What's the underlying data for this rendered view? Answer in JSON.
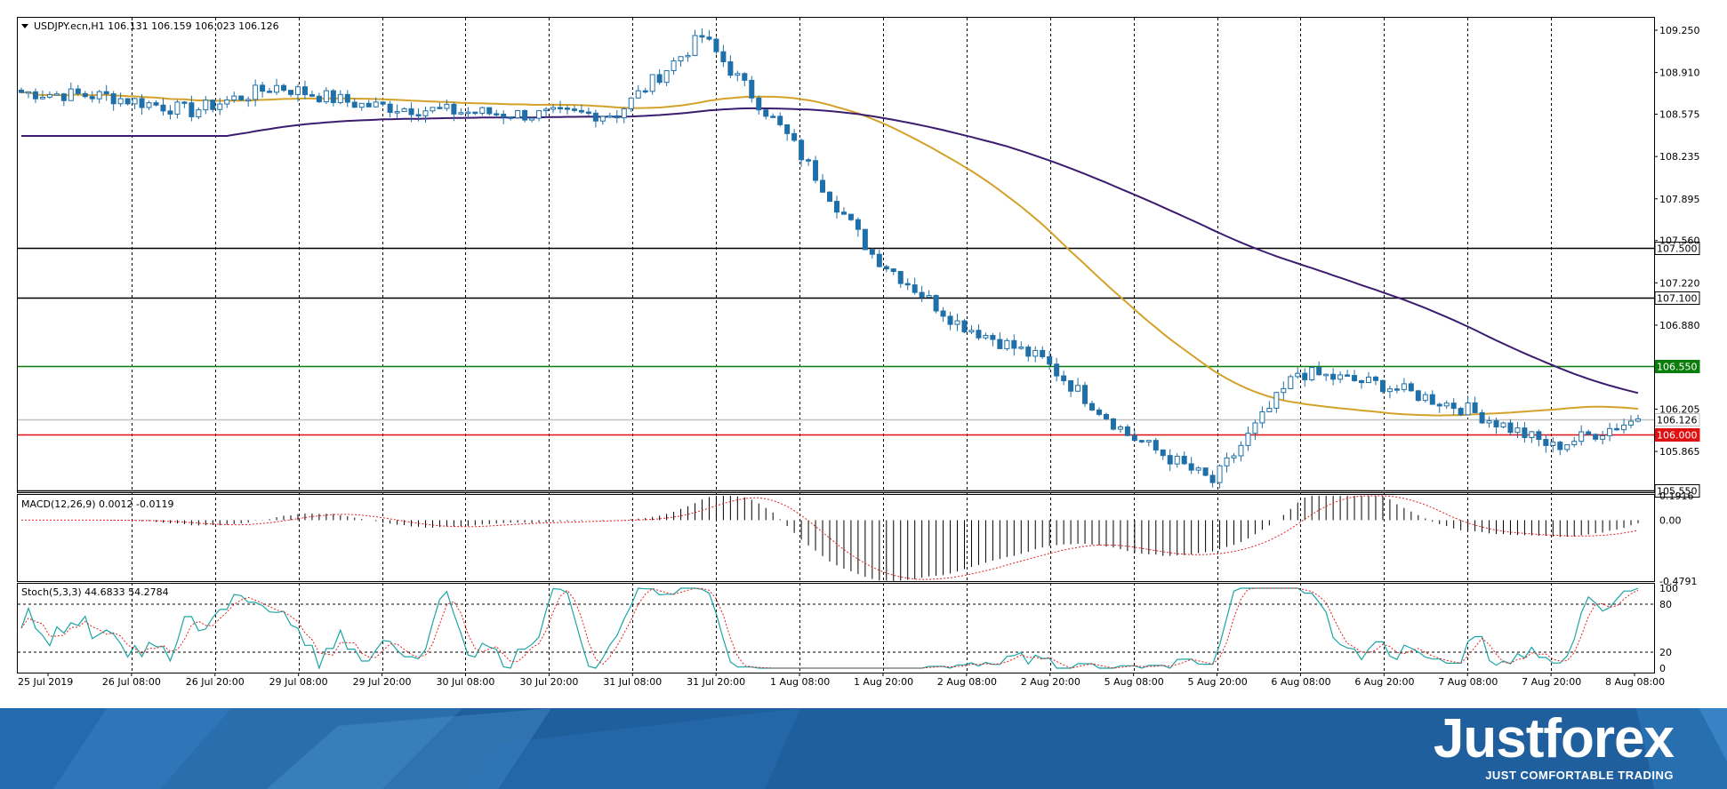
{
  "header": {
    "symbol_info": "USDJPY.ecn,H1  106.131 106.159 106.023 106.126"
  },
  "indicators": {
    "macd_label": "MACD(12,26,9) 0.0012 -0.0119",
    "stoch_label": "Stoch(5,3,3) 44.6833 54.2784"
  },
  "price_axis": {
    "ticks": [
      "109.250",
      "108.910",
      "108.575",
      "108.235",
      "107.895",
      "107.560",
      "107.220",
      "106.880",
      "106.205",
      "105.865"
    ]
  },
  "macd_axis": {
    "ticks": [
      "0.1916",
      "0.00",
      "-0.4791"
    ]
  },
  "stoch_axis": {
    "ticks": [
      "100",
      "80",
      "20",
      "0"
    ]
  },
  "time_axis": {
    "labels": [
      "25 Jul 2019",
      "26 Jul 08:00",
      "26 Jul 20:00",
      "29 Jul 08:00",
      "29 Jul 20:00",
      "30 Jul 08:00",
      "30 Jul 20:00",
      "31 Jul 08:00",
      "31 Jul 20:00",
      "1 Aug 08:00",
      "1 Aug 20:00",
      "2 Aug 08:00",
      "2 Aug 20:00",
      "5 Aug 08:00",
      "5 Aug 20:00",
      "6 Aug 08:00",
      "6 Aug 20:00",
      "7 Aug 08:00",
      "7 Aug 20:00",
      "8 Aug 08:00"
    ]
  },
  "levels": [
    {
      "price": "107.500",
      "color": "#000000",
      "text_color": "#000000",
      "bg": "#ffffff"
    },
    {
      "price": "107.100",
      "color": "#000000",
      "text_color": "#000000",
      "bg": "#ffffff"
    },
    {
      "price": "106.550",
      "color": "#0a7d0a",
      "text_color": "#ffffff",
      "bg": "#0a7d0a"
    },
    {
      "price": "106.126",
      "color": "#c0c0c0",
      "text_color": "#000000",
      "bg": "#ffffff"
    },
    {
      "price": "106.000",
      "color": "#e01010",
      "text_color": "#ffffff",
      "bg": "#e01010"
    },
    {
      "price": "105.550",
      "color": "#000000",
      "text_color": "#000000",
      "bg": "#ffffff"
    }
  ],
  "colors": {
    "candle_up": "#ffffff",
    "candle_down": "#1f6fa8",
    "candle_outline": "#1f6fa8",
    "ma_fast": "#d4a22a",
    "ma_slow": "#3b1c6e",
    "macd_signal": "#e02020",
    "stoch_main": "#1aa5a5",
    "stoch_signal": "#e02020",
    "footer_bg": "#1f5f9e"
  },
  "chart_data": {
    "type": "candlestick",
    "symbol": "USDJPY.ecn",
    "timeframe": "H1",
    "ylim": [
      105.53,
      109.35
    ],
    "anchors": [
      {
        "x": "25 Jul 2019",
        "close": 108.75
      },
      {
        "x": "26 Jul 08:00",
        "close": 108.72
      },
      {
        "x": "26 Jul 20:00",
        "close": 108.6
      },
      {
        "x": "29 Jul 08:00",
        "close": 108.8
      },
      {
        "x": "29 Jul 20:00",
        "close": 108.65
      },
      {
        "x": "30 Jul 08:00",
        "close": 108.6
      },
      {
        "x": "30 Jul 20:00",
        "close": 108.57
      },
      {
        "x": "31 Jul 08:00",
        "close": 108.58
      },
      {
        "x": "31 Jul 20:00",
        "close": 109.2
      },
      {
        "x": "1 Aug 08:00",
        "close": 108.4
      },
      {
        "x": "1 Aug 20:00",
        "close": 107.45
      },
      {
        "x": "2 Aug 08:00",
        "close": 106.9
      },
      {
        "x": "2 Aug 20:00",
        "close": 106.6
      },
      {
        "x": "5 Aug 08:00",
        "close": 106.0
      },
      {
        "x": "5 Aug 20:00",
        "close": 105.62
      },
      {
        "x": "6 Aug 08:00",
        "close": 106.5
      },
      {
        "x": "6 Aug 20:00",
        "close": 106.4
      },
      {
        "x": "7 Aug 08:00",
        "close": 106.2
      },
      {
        "x": "7 Aug 20:00",
        "close": 105.9
      },
      {
        "x": "8 Aug 08:00",
        "close": 106.126
      }
    ],
    "macd_range": [
      -0.4791,
      0.1916
    ],
    "stoch_levels": [
      20,
      80
    ]
  }
}
